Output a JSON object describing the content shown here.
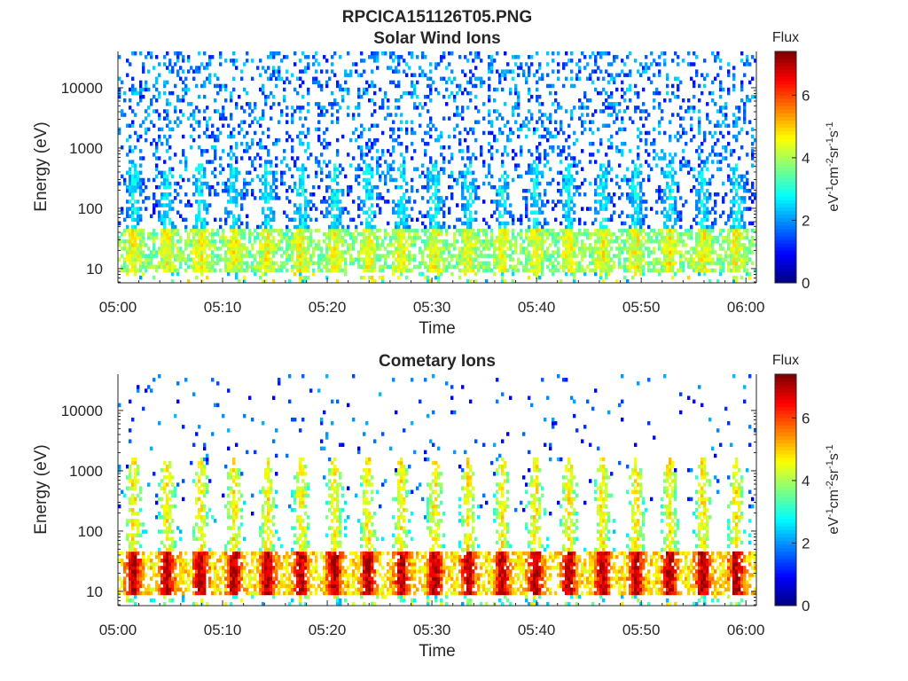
{
  "figure": {
    "title": "RPCICA151126T05.PNG"
  },
  "colorbar": {
    "title": "Flux",
    "unit_base": "eV",
    "unit_sup1": "-1",
    "unit_mid1": "cm",
    "unit_sup2": "-2",
    "unit_mid2": "sr",
    "unit_sup3": "-1",
    "unit_mid3": "s",
    "unit_sup4": "-1",
    "range": [
      0,
      7.4
    ],
    "ticks": [
      "0",
      "2",
      "4",
      "6"
    ],
    "colormap": "jet"
  },
  "chart_data": [
    {
      "type": "heatmap",
      "title": "Solar Wind Ions",
      "xlabel": "Time",
      "ylabel": "Energy (eV)",
      "x_ticks": [
        "05:00",
        "05:10",
        "05:20",
        "05:30",
        "05:40",
        "05:50",
        "06:00"
      ],
      "x_range_minutes": [
        0,
        61
      ],
      "y_scale": "log",
      "y_ticks": [
        "10",
        "100",
        "1000",
        "10000"
      ],
      "y_range": [
        5.8,
        40000
      ],
      "colorbar_range": [
        0,
        7.4
      ],
      "description_values": {
        "low_energy_band_eV": [
          12,
          45
        ],
        "low_energy_flux": 4.5,
        "sparse_high_energy_flux": 1.8,
        "burst_period_minutes": 3.2,
        "burst_start_minutes": 0.6
      }
    },
    {
      "type": "heatmap",
      "title": "Cometary Ions",
      "xlabel": "Time",
      "ylabel": "Energy (eV)",
      "x_ticks": [
        "05:00",
        "05:10",
        "05:20",
        "05:30",
        "05:40",
        "05:50",
        "06:00"
      ],
      "x_range_minutes": [
        0,
        61
      ],
      "y_scale": "log",
      "y_ticks": [
        "10",
        "100",
        "1000",
        "10000"
      ],
      "y_range": [
        5.8,
        40000
      ],
      "colorbar_range": [
        0,
        7.4
      ],
      "description_values": {
        "low_energy_band_eV": [
          12,
          45
        ],
        "peak_flux": 7.0,
        "sparse_high_energy_flux": 1.5,
        "burst_period_minutes": 3.2,
        "burst_start_minutes": 0.6
      }
    }
  ]
}
